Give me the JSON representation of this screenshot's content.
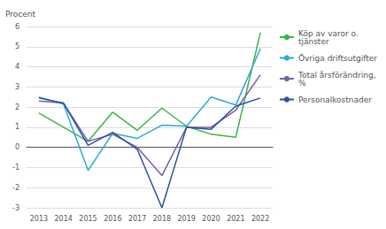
{
  "chart_data": {
    "type": "line",
    "y_label": "Procent",
    "categories": [
      "2013",
      "2014",
      "2015",
      "2016",
      "2017",
      "2018",
      "2019",
      "2020",
      "2021",
      "2022"
    ],
    "series": [
      {
        "name": "Köp av varor o.\ntjänster",
        "color": "#3cb34a",
        "values": [
          1.7,
          1.0,
          0.3,
          1.75,
          0.85,
          1.95,
          1.05,
          0.65,
          0.5,
          5.7
        ]
      },
      {
        "name": "Övriga driftsutgifter",
        "color": "#2aaccc",
        "values": [
          2.5,
          2.15,
          -1.15,
          0.7,
          0.45,
          1.1,
          1.05,
          2.5,
          2.1,
          4.9
        ]
      },
      {
        "name": "Total årsförändring,\n%",
        "color": "#7b5ea7",
        "values": [
          2.3,
          2.2,
          0.3,
          0.65,
          0.0,
          -1.4,
          1.0,
          1.0,
          1.85,
          3.6
        ]
      },
      {
        "name": "Personalkostnader",
        "color": "#2851a3",
        "values": [
          2.45,
          2.2,
          0.1,
          0.75,
          -0.1,
          -3.0,
          1.0,
          0.9,
          2.05,
          2.45
        ]
      }
    ],
    "ylim": [
      -3,
      6
    ],
    "yticks": [
      -3,
      -2,
      -1,
      0,
      1,
      2,
      3,
      4,
      5,
      6
    ],
    "grid": true,
    "legend": "right"
  }
}
